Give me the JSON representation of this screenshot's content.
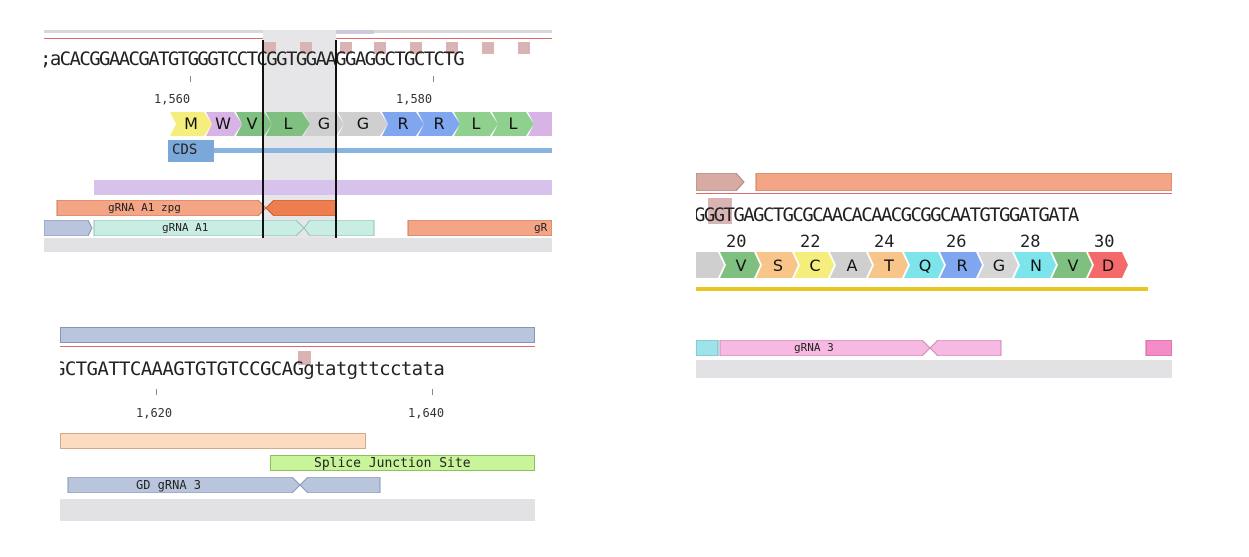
{
  "panel1": {
    "sequence": ";aCACGGAACGATGTGGGTCCTCGGTGGAAGGAGGCTGCTCTG",
    "ruler": [
      "1,560",
      "1,580"
    ],
    "aa": [
      "M",
      "W",
      "V",
      "L",
      "G",
      "G",
      "R",
      "R",
      "L",
      "L"
    ],
    "cds_label": "CDS",
    "features": {
      "grna_a1_zpg": "gRNA A1 zpg",
      "grna_a1": "gRNA A1",
      "grna_right": "gR"
    }
  },
  "panel2": {
    "sequence": "GGGTGAGCTGCGCAACACAACGCGGCAATGTGGATGATA",
    "numbers": [
      "20",
      "22",
      "24",
      "26",
      "28",
      "30"
    ],
    "aa": [
      "V",
      "S",
      "C",
      "A",
      "T",
      "Q",
      "R",
      "G",
      "N",
      "V",
      "D"
    ],
    "features": {
      "grna3": "gRNA 3"
    }
  },
  "panel3": {
    "sequence": "GCTGATTCAAAGTGTGTCCGCAGgtatgttcctata",
    "ruler": [
      "1,620",
      "1,640"
    ],
    "features": {
      "splice": "Splice Junction Site",
      "gd_grna3": "GD gRNA 3"
    }
  },
  "colors": {
    "accent_red": "#d32f2f",
    "salmon": "#f4a585",
    "lavender": "#d6c2ea",
    "mint": "#c9ece3",
    "steel": "#b9c5dc",
    "pink": "#f6b9e2",
    "yellow": "#e8c722"
  }
}
